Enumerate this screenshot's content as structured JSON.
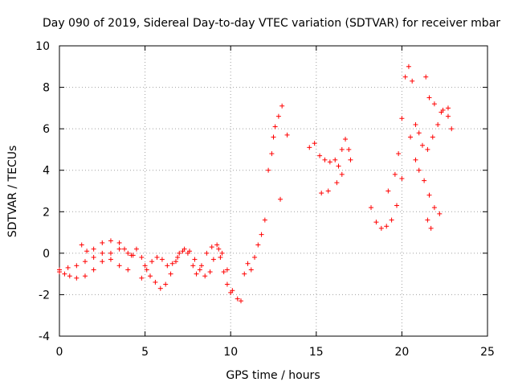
{
  "chart_data": {
    "type": "scatter",
    "title": "Day 090 of 2019, Sidereal Day-to-day VTEC variation (SDTVAR) for receiver mbar",
    "xlabel": "GPS time / hours",
    "ylabel": "SDTVAR / TECUs",
    "xlim": [
      0,
      25
    ],
    "ylim": [
      -4,
      10
    ],
    "x_ticks": [
      0,
      5,
      10,
      15,
      20,
      25
    ],
    "x_tick_labels": [
      "0",
      "5",
      "10",
      "15",
      "20",
      "25"
    ],
    "y_ticks": [
      -4,
      -2,
      0,
      2,
      4,
      6,
      8,
      10
    ],
    "y_tick_labels": [
      "-4",
      "-2",
      "0",
      "2",
      "4",
      "6",
      "8",
      "10"
    ],
    "grid": true,
    "marker": "+",
    "series_color": "#ff0000",
    "series": [
      {
        "name": "SDTVAR",
        "segments": [
          [
            [
              0.0,
              -0.9
            ],
            [
              0.3,
              -1.0
            ],
            [
              0.6,
              -1.1
            ],
            [
              1.0,
              -1.2
            ],
            [
              1.5,
              -1.1
            ],
            [
              2.0,
              -0.8
            ],
            [
              2.5,
              -0.4
            ],
            [
              3.0,
              0.0
            ],
            [
              3.5,
              0.2
            ],
            [
              4.0,
              0.0
            ],
            [
              4.3,
              -0.1
            ]
          ],
          [
            [
              0.0,
              -0.8
            ],
            [
              0.5,
              -0.7
            ],
            [
              1.0,
              -0.6
            ],
            [
              1.5,
              -0.4
            ],
            [
              2.0,
              -0.2
            ],
            [
              2.5,
              0.0
            ],
            [
              3.0,
              -0.3
            ],
            [
              3.5,
              -0.6
            ],
            [
              4.0,
              -0.8
            ]
          ],
          [
            [
              1.3,
              0.4
            ],
            [
              1.6,
              0.1
            ],
            [
              2.0,
              0.2
            ],
            [
              2.5,
              0.5
            ],
            [
              3.0,
              0.6
            ],
            [
              3.5,
              0.5
            ],
            [
              3.8,
              0.2
            ],
            [
              4.2,
              -0.1
            ]
          ],
          [
            [
              4.5,
              0.2
            ],
            [
              4.8,
              -0.2
            ],
            [
              5.0,
              -0.6
            ],
            [
              5.3,
              -1.1
            ],
            [
              5.6,
              -1.4
            ],
            [
              5.9,
              -1.7
            ],
            [
              6.2,
              -1.5
            ],
            [
              6.5,
              -1.0
            ],
            [
              6.8,
              -0.4
            ],
            [
              7.0,
              0.0
            ],
            [
              7.3,
              0.2
            ],
            [
              7.6,
              0.1
            ],
            [
              7.9,
              -0.3
            ],
            [
              8.2,
              -0.8
            ],
            [
              8.5,
              -1.1
            ],
            [
              8.8,
              -0.9
            ],
            [
              9.0,
              -0.3
            ],
            [
              9.3,
              0.2
            ],
            [
              9.5,
              0.0
            ],
            [
              9.8,
              -0.8
            ],
            [
              10.1,
              -1.8
            ],
            [
              10.4,
              -2.2
            ],
            [
              10.6,
              -2.3
            ]
          ],
          [
            [
              4.8,
              -1.2
            ],
            [
              5.1,
              -0.8
            ],
            [
              5.4,
              -0.4
            ],
            [
              5.7,
              -0.2
            ],
            [
              6.0,
              -0.3
            ],
            [
              6.3,
              -0.6
            ],
            [
              6.6,
              -0.5
            ],
            [
              6.9,
              -0.2
            ],
            [
              7.2,
              0.1
            ],
            [
              7.5,
              0.0
            ],
            [
              7.8,
              -0.6
            ],
            [
              8.0,
              -1.0
            ],
            [
              8.3,
              -0.6
            ],
            [
              8.6,
              0.0
            ],
            [
              8.9,
              0.3
            ],
            [
              9.2,
              0.4
            ],
            [
              9.4,
              -0.2
            ],
            [
              9.6,
              -0.9
            ],
            [
              9.8,
              -1.5
            ],
            [
              10.0,
              -1.9
            ]
          ],
          [
            [
              10.8,
              -1.0
            ],
            [
              11.0,
              -0.5
            ],
            [
              11.2,
              -0.8
            ],
            [
              11.4,
              -0.2
            ],
            [
              11.6,
              0.4
            ],
            [
              11.8,
              0.9
            ],
            [
              12.0,
              1.6
            ]
          ],
          [
            [
              12.2,
              4.0
            ],
            [
              12.4,
              4.8
            ],
            [
              12.5,
              5.6
            ],
            [
              12.6,
              6.1
            ],
            [
              12.8,
              6.6
            ],
            [
              13.0,
              7.1
            ],
            [
              13.3,
              5.7
            ],
            [
              12.9,
              2.6
            ]
          ],
          [
            [
              14.6,
              5.1
            ],
            [
              14.9,
              5.3
            ],
            [
              15.2,
              4.7
            ],
            [
              15.5,
              4.5
            ],
            [
              15.8,
              4.4
            ],
            [
              16.1,
              4.5
            ],
            [
              16.3,
              4.2
            ],
            [
              16.5,
              5.0
            ],
            [
              16.7,
              5.5
            ],
            [
              16.9,
              5.0
            ],
            [
              17.0,
              4.5
            ],
            [
              16.5,
              3.8
            ],
            [
              16.2,
              3.4
            ],
            [
              15.7,
              3.0
            ],
            [
              15.3,
              2.9
            ]
          ],
          [
            [
              18.2,
              2.2
            ],
            [
              18.5,
              1.5
            ],
            [
              18.8,
              1.2
            ],
            [
              19.1,
              1.3
            ],
            [
              19.4,
              1.6
            ],
            [
              19.7,
              2.3
            ],
            [
              20.0,
              3.6
            ]
          ],
          [
            [
              19.2,
              3.0
            ],
            [
              19.6,
              3.8
            ],
            [
              19.8,
              4.8
            ],
            [
              20.0,
              6.5
            ],
            [
              20.2,
              8.5
            ],
            [
              20.4,
              9.0
            ],
            [
              20.6,
              8.3
            ],
            [
              20.8,
              6.2
            ],
            [
              21.0,
              5.8
            ],
            [
              21.2,
              5.2
            ],
            [
              21.5,
              5.0
            ],
            [
              21.8,
              5.6
            ],
            [
              22.1,
              6.2
            ],
            [
              22.4,
              6.9
            ],
            [
              22.7,
              7.0
            ],
            [
              22.9,
              6.0
            ]
          ],
          [
            [
              20.5,
              5.6
            ],
            [
              20.8,
              4.5
            ],
            [
              21.0,
              4.0
            ],
            [
              21.3,
              3.5
            ],
            [
              21.6,
              2.8
            ],
            [
              21.9,
              2.2
            ],
            [
              22.2,
              1.9
            ],
            [
              21.5,
              1.6
            ],
            [
              21.7,
              1.2
            ]
          ],
          [
            [
              21.4,
              8.5
            ],
            [
              21.6,
              7.5
            ],
            [
              21.9,
              7.2
            ],
            [
              22.3,
              6.8
            ],
            [
              22.7,
              6.6
            ]
          ]
        ]
      }
    ]
  }
}
